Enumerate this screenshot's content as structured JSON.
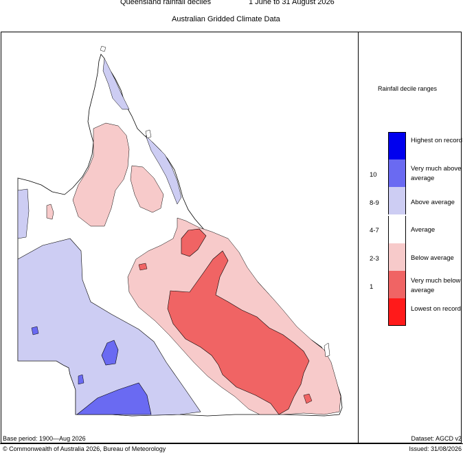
{
  "header": {
    "title": "Queensland rainfall deciles",
    "period": "1 June to 31 August 2026",
    "subtitle": "Australian Gridded Climate Data"
  },
  "legend": {
    "title": "Rainfall decile ranges",
    "items": [
      {
        "range": "",
        "label": "Highest on record",
        "color": "#0000ee"
      },
      {
        "range": "10",
        "label": "Very much above average",
        "color": "#6a6af2"
      },
      {
        "range": "8-9",
        "label": "Above average",
        "color": "#cdcdf3"
      },
      {
        "range": "4-7",
        "label": "Average",
        "color": "#ffffff"
      },
      {
        "range": "2-3",
        "label": "Below average",
        "color": "#f7caca"
      },
      {
        "range": "1",
        "label": "Very much below average",
        "color": "#f06464"
      },
      {
        "range": "",
        "label": "Lowest on record",
        "color": "#ff1a1a"
      }
    ]
  },
  "footer": {
    "base_period": "Base period: 1900—Aug 2026",
    "dataset": "Dataset: AGCD v2",
    "copyright": "© Commonwealth of Australia 2026, Bureau of Meteorology",
    "issued": "Issued: 31/08/2026"
  }
}
